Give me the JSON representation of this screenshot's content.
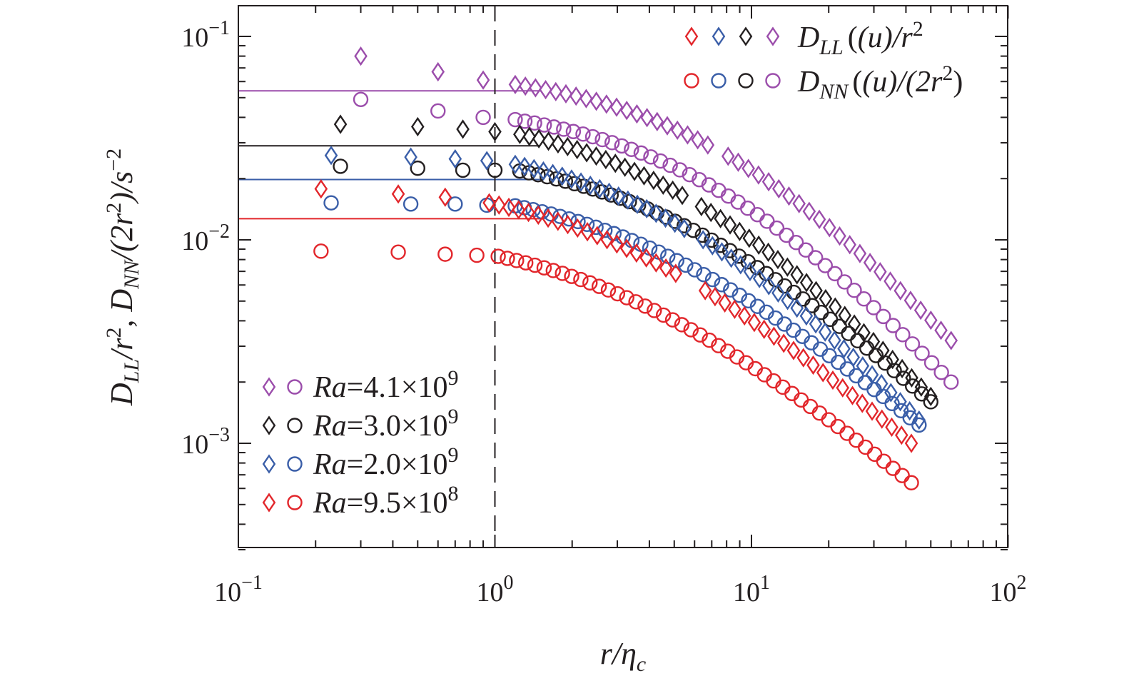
{
  "chart_data": {
    "type": "scatter",
    "xscale": "log",
    "yscale": "log",
    "xlim": [
      0.1,
      100
    ],
    "ylim": [
      0.00033,
      0.14
    ],
    "xlabel": {
      "main": "r/η",
      "sub": "c"
    },
    "ylabel": {
      "p1": "D",
      "s1": "LL",
      "p2": "/r",
      "e2": "2",
      "p3": ", D",
      "s3": "NN",
      "p4": "/(2r",
      "e4": "2",
      "p5": ")/s",
      "e5": "−2"
    },
    "x_ticks": [
      {
        "value": 0.1,
        "base": "10",
        "exp": "−1"
      },
      {
        "value": 1,
        "base": "10",
        "exp": "0"
      },
      {
        "value": 10,
        "base": "10",
        "exp": "1"
      },
      {
        "value": 100,
        "base": "10",
        "exp": "2"
      }
    ],
    "y_ticks": [
      {
        "value": 0.1,
        "base": "10",
        "exp": "−1"
      },
      {
        "value": 0.01,
        "base": "10",
        "exp": "−2"
      },
      {
        "value": 0.001,
        "base": "10",
        "exp": "−3"
      }
    ],
    "vline": {
      "x": 1,
      "style": "dashed"
    },
    "marker_legend": [
      {
        "symbol": "diamond",
        "base": "D",
        "sub": "LL",
        "rest": "(u)/r",
        "sup": "2",
        "tail": ""
      },
      {
        "symbol": "circle",
        "base": "D",
        "sub": "NN",
        "rest": "(u)/(2r",
        "sup": "2",
        "tail": ")"
      }
    ],
    "series": [
      {
        "name": "Ra=4.1×10⁹",
        "ra_base": "Ra=4.1×10",
        "ra_exp": "9",
        "color": "#9b4dab",
        "ref_level": 0.054,
        "ref_end": 1.5,
        "diamonds_x": [
          0.3,
          0.6,
          0.9
        ],
        "diamonds_y": [
          0.08,
          0.067,
          0.061
        ],
        "diamonds": {
          "x_start": 1.2,
          "x_end": 60,
          "count": 44,
          "y_start": 0.058,
          "y_end": 0.0032,
          "knee": 8,
          "slope": 1.6,
          "gaps": [
            [
              7.2,
              8.0
            ]
          ]
        },
        "circles_x": [
          0.3,
          0.6,
          0.9
        ],
        "circles_y": [
          0.049,
          0.043,
          0.04
        ],
        "circles": {
          "x_start": 1.2,
          "x_end": 60,
          "count": 46,
          "y_start": 0.039,
          "y_end": 0.002,
          "knee": 7,
          "slope": 1.75,
          "gaps": []
        }
      },
      {
        "name": "Ra=3.0×10⁹",
        "ra_base": "Ra=3.0×10",
        "ra_exp": "9",
        "color": "#231f20",
        "ref_level": 0.029,
        "ref_end": 1.5,
        "diamonds_x": [
          0.25,
          0.5,
          0.75,
          1.0
        ],
        "diamonds_y": [
          0.037,
          0.036,
          0.035,
          0.034
        ],
        "diamonds": {
          "x_start": 1.25,
          "x_end": 50,
          "count": 44,
          "y_start": 0.033,
          "y_end": 0.0017,
          "knee": 5,
          "slope": 1.7,
          "gaps": [
            [
              5.6,
              6.2
            ]
          ]
        },
        "circles_x": [
          0.25,
          0.5,
          0.75,
          1.0
        ],
        "circles_y": [
          0.023,
          0.0225,
          0.022,
          0.022
        ],
        "circles": {
          "x_start": 1.25,
          "x_end": 50,
          "count": 46,
          "y_start": 0.0218,
          "y_end": 0.0016,
          "knee": 5,
          "slope": 1.75,
          "gaps": []
        }
      },
      {
        "name": "Ra=2.0×10⁹",
        "ra_base": "Ra=2.0×10",
        "ra_exp": "9",
        "color": "#3a5ea8",
        "ref_level": 0.0198,
        "ref_end": 1.5,
        "diamonds_x": [
          0.23,
          0.47,
          0.7,
          0.93
        ],
        "diamonds_y": [
          0.026,
          0.0255,
          0.025,
          0.0245
        ],
        "diamonds": {
          "x_start": 1.2,
          "x_end": 45,
          "count": 44,
          "y_start": 0.0235,
          "y_end": 0.0013,
          "knee": 5,
          "slope": 1.7,
          "gaps": [
            [
              5.5,
              6.1
            ]
          ]
        },
        "circles_x": [
          0.23,
          0.47,
          0.7,
          0.93
        ],
        "circles_y": [
          0.0152,
          0.015,
          0.015,
          0.0148
        ],
        "circles": {
          "x_start": 1.2,
          "x_end": 45,
          "count": 46,
          "y_start": 0.0147,
          "y_end": 0.00123,
          "knee": 4,
          "slope": 1.72,
          "gaps": []
        }
      },
      {
        "name": "Ra=9.5×10⁸",
        "ra_base": "Ra=9.5×10",
        "ra_exp": "8",
        "color": "#e2262b",
        "ref_level": 0.0127,
        "ref_end": 1.5,
        "diamonds_x": [
          0.21,
          0.42,
          0.64
        ],
        "diamonds_y": [
          0.0178,
          0.0168,
          0.0162
        ],
        "diamonds": {
          "x_start": 0.95,
          "x_end": 42,
          "count": 44,
          "y_start": 0.0152,
          "y_end": 0.001,
          "knee": 3,
          "slope": 1.7,
          "gaps": [
            [
              5.5,
              6.1
            ]
          ]
        },
        "circles_x": [
          0.21,
          0.42,
          0.64,
          0.85
        ],
        "circles_y": [
          0.0088,
          0.0087,
          0.0085,
          0.0084
        ],
        "circles": {
          "x_start": 1.03,
          "x_end": 42,
          "count": 46,
          "y_start": 0.0083,
          "y_end": 0.00064,
          "knee": 3,
          "slope": 1.72,
          "gaps": []
        }
      }
    ]
  }
}
